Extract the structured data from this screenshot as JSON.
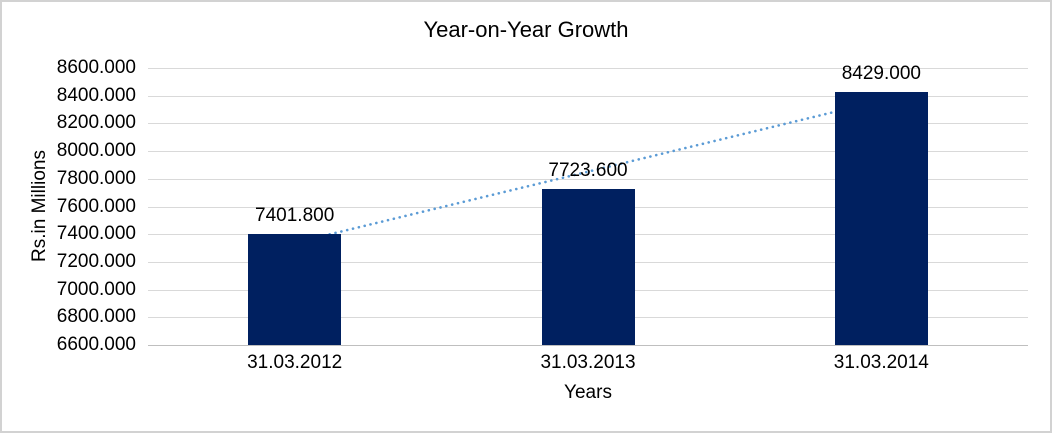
{
  "chart_data": {
    "type": "bar",
    "title": "Year-on-Year Growth",
    "xlabel": "Years",
    "ylabel": "Rs.in Millions",
    "categories": [
      "31.03.2012",
      "31.03.2013",
      "31.03.2014"
    ],
    "values": [
      7401.8,
      7723.6,
      8429.0
    ],
    "data_labels": [
      "7401.800",
      "7723.600",
      "8429.000"
    ],
    "y_tick_labels": [
      "8600.000",
      "8400.000",
      "8200.000",
      "8000.000",
      "7800.000",
      "7600.000",
      "7400.000",
      "7200.000",
      "7000.000",
      "6800.000",
      "6600.000"
    ],
    "ylim": [
      6600,
      8600
    ],
    "y_tick_step": 200,
    "grid": true,
    "legend": "none",
    "bar_color": "#002060",
    "gridline_color": "#d9d9d9",
    "axis_line_color": "#bfbfbf",
    "text_color": "#000000",
    "frame_border_color": "#d2d2d2",
    "trendline": {
      "type": "linear",
      "style": "dotted",
      "color": "#5b9bd5"
    }
  }
}
